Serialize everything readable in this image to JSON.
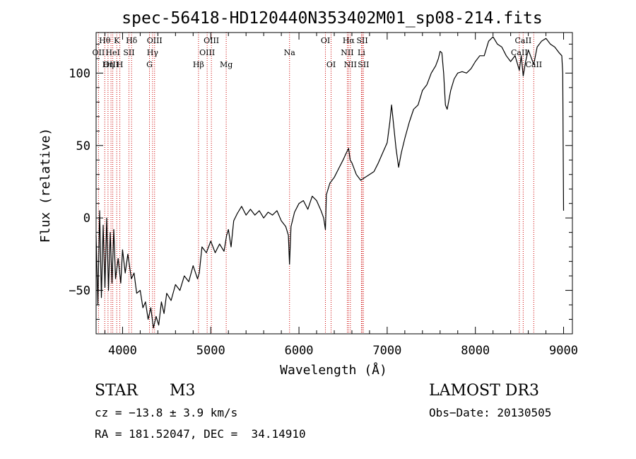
{
  "chart_data": {
    "type": "line",
    "title": "spec-56418-HD120440N353402M01_sp08-214.fits",
    "xlabel": "Wavelength (Å)",
    "ylabel": "Flux (relative)",
    "xlim": [
      3700,
      9100
    ],
    "ylim": [
      -80,
      128
    ],
    "xticks": [
      4000,
      5000,
      6000,
      7000,
      8000,
      9000
    ],
    "yticks": [
      -50,
      0,
      50,
      100
    ],
    "grid": false,
    "line_color": "#000000",
    "marker_color": "#cc0000",
    "series": [
      {
        "points": [
          [
            3700,
            -12
          ],
          [
            3720,
            -60
          ],
          [
            3740,
            5
          ],
          [
            3760,
            -55
          ],
          [
            3780,
            -5
          ],
          [
            3800,
            -48
          ],
          [
            3820,
            0
          ],
          [
            3840,
            -50
          ],
          [
            3860,
            -10
          ],
          [
            3880,
            -45
          ],
          [
            3900,
            -8
          ],
          [
            3920,
            -42
          ],
          [
            3950,
            -28
          ],
          [
            3980,
            -45
          ],
          [
            4000,
            -22
          ],
          [
            4030,
            -38
          ],
          [
            4060,
            -25
          ],
          [
            4100,
            -42
          ],
          [
            4130,
            -38
          ],
          [
            4160,
            -52
          ],
          [
            4200,
            -50
          ],
          [
            4230,
            -62
          ],
          [
            4260,
            -58
          ],
          [
            4290,
            -70
          ],
          [
            4320,
            -62
          ],
          [
            4350,
            -76
          ],
          [
            4380,
            -68
          ],
          [
            4410,
            -74
          ],
          [
            4440,
            -58
          ],
          [
            4470,
            -66
          ],
          [
            4500,
            -52
          ],
          [
            4550,
            -57
          ],
          [
            4600,
            -46
          ],
          [
            4650,
            -50
          ],
          [
            4700,
            -40
          ],
          [
            4750,
            -44
          ],
          [
            4800,
            -33
          ],
          [
            4850,
            -42
          ],
          [
            4870,
            -38
          ],
          [
            4900,
            -20
          ],
          [
            4950,
            -24
          ],
          [
            5000,
            -16
          ],
          [
            5050,
            -24
          ],
          [
            5100,
            -18
          ],
          [
            5150,
            -23
          ],
          [
            5180,
            -12
          ],
          [
            5200,
            -8
          ],
          [
            5230,
            -20
          ],
          [
            5260,
            -2
          ],
          [
            5300,
            3
          ],
          [
            5350,
            8
          ],
          [
            5400,
            2
          ],
          [
            5450,
            6
          ],
          [
            5500,
            2
          ],
          [
            5550,
            5
          ],
          [
            5600,
            0
          ],
          [
            5650,
            4
          ],
          [
            5700,
            2
          ],
          [
            5750,
            5
          ],
          [
            5800,
            -2
          ],
          [
            5850,
            -6
          ],
          [
            5880,
            -12
          ],
          [
            5893,
            -32
          ],
          [
            5910,
            -6
          ],
          [
            5950,
            4
          ],
          [
            6000,
            10
          ],
          [
            6050,
            12
          ],
          [
            6100,
            6
          ],
          [
            6150,
            15
          ],
          [
            6200,
            12
          ],
          [
            6250,
            5
          ],
          [
            6280,
            0
          ],
          [
            6300,
            -8
          ],
          [
            6310,
            16
          ],
          [
            6350,
            24
          ],
          [
            6400,
            28
          ],
          [
            6450,
            34
          ],
          [
            6500,
            40
          ],
          [
            6530,
            44
          ],
          [
            6563,
            48
          ],
          [
            6580,
            40
          ],
          [
            6600,
            38
          ],
          [
            6650,
            30
          ],
          [
            6700,
            26
          ],
          [
            6750,
            28
          ],
          [
            6800,
            30
          ],
          [
            6850,
            32
          ],
          [
            6900,
            38
          ],
          [
            6950,
            45
          ],
          [
            7000,
            52
          ],
          [
            7030,
            66
          ],
          [
            7050,
            78
          ],
          [
            7080,
            60
          ],
          [
            7100,
            48
          ],
          [
            7130,
            35
          ],
          [
            7160,
            45
          ],
          [
            7200,
            55
          ],
          [
            7250,
            66
          ],
          [
            7300,
            75
          ],
          [
            7350,
            78
          ],
          [
            7400,
            88
          ],
          [
            7450,
            92
          ],
          [
            7500,
            100
          ],
          [
            7550,
            105
          ],
          [
            7580,
            110
          ],
          [
            7600,
            115
          ],
          [
            7620,
            114
          ],
          [
            7640,
            100
          ],
          [
            7660,
            78
          ],
          [
            7680,
            75
          ],
          [
            7720,
            88
          ],
          [
            7760,
            96
          ],
          [
            7800,
            100
          ],
          [
            7850,
            101
          ],
          [
            7900,
            100
          ],
          [
            7950,
            103
          ],
          [
            8000,
            108
          ],
          [
            8050,
            112
          ],
          [
            8100,
            112
          ],
          [
            8150,
            122
          ],
          [
            8200,
            125
          ],
          [
            8250,
            120
          ],
          [
            8300,
            118
          ],
          [
            8350,
            112
          ],
          [
            8400,
            108
          ],
          [
            8450,
            112
          ],
          [
            8498,
            102
          ],
          [
            8520,
            112
          ],
          [
            8542,
            98
          ],
          [
            8570,
            108
          ],
          [
            8600,
            116
          ],
          [
            8662,
            106
          ],
          [
            8700,
            118
          ],
          [
            8750,
            122
          ],
          [
            8800,
            124
          ],
          [
            8850,
            120
          ],
          [
            8900,
            118
          ],
          [
            8950,
            114
          ],
          [
            8980,
            112
          ],
          [
            8990,
            100
          ],
          [
            9000,
            5
          ]
        ]
      }
    ],
    "line_markers": [
      {
        "name": "Hθ",
        "x": 3798,
        "row": 0
      },
      {
        "name": "OII",
        "x": 3727,
        "row": 1
      },
      {
        "name": "OIII",
        "x": 3869,
        "row": 2
      },
      {
        "name": "K",
        "x": 3934,
        "row": 0
      },
      {
        "name": "HeI",
        "x": 3889,
        "row": 1
      },
      {
        "name": "Hη",
        "x": 3835,
        "row": 2
      },
      {
        "name": "Hδ",
        "x": 4102,
        "row": 0
      },
      {
        "name": "SII",
        "x": 4072,
        "row": 1
      },
      {
        "name": "H",
        "x": 3969,
        "row": 2
      },
      {
        "name": "OIII",
        "x": 4363,
        "row": 0
      },
      {
        "name": "Hγ",
        "x": 4340,
        "row": 1
      },
      {
        "name": "G",
        "x": 4305,
        "row": 2
      },
      {
        "name": "OIII",
        "x": 5007,
        "row": 0
      },
      {
        "name": "OIII",
        "x": 4959,
        "row": 1
      },
      {
        "name": "Hβ",
        "x": 4861,
        "row": 2
      },
      {
        "name": "Mg",
        "x": 5175,
        "row": 2
      },
      {
        "name": "Na",
        "x": 5893,
        "row": 1
      },
      {
        "name": "OI",
        "x": 6300,
        "row": 0
      },
      {
        "name": "OI",
        "x": 6364,
        "row": 2
      },
      {
        "name": "Hα",
        "x": 6563,
        "row": 0
      },
      {
        "name": "NII",
        "x": 6548,
        "row": 1
      },
      {
        "name": "NII",
        "x": 6583,
        "row": 2
      },
      {
        "name": "SII",
        "x": 6717,
        "row": 0
      },
      {
        "name": "Li",
        "x": 6708,
        "row": 1
      },
      {
        "name": "SII",
        "x": 6731,
        "row": 2
      },
      {
        "name": "CaII",
        "x": 8542,
        "row": 0
      },
      {
        "name": "CaII",
        "x": 8498,
        "row": 1
      },
      {
        "name": "CaII",
        "x": 8662,
        "row": 2
      }
    ]
  },
  "info": {
    "object_type": "STAR",
    "subclass": "M3",
    "survey": "LAMOST DR3",
    "cz": "cz = −13.8 ± 3.9 km/s",
    "obs_date": "Obs−Date: 20130505",
    "coords": "RA = 181.52047, DEC =  34.14910"
  }
}
